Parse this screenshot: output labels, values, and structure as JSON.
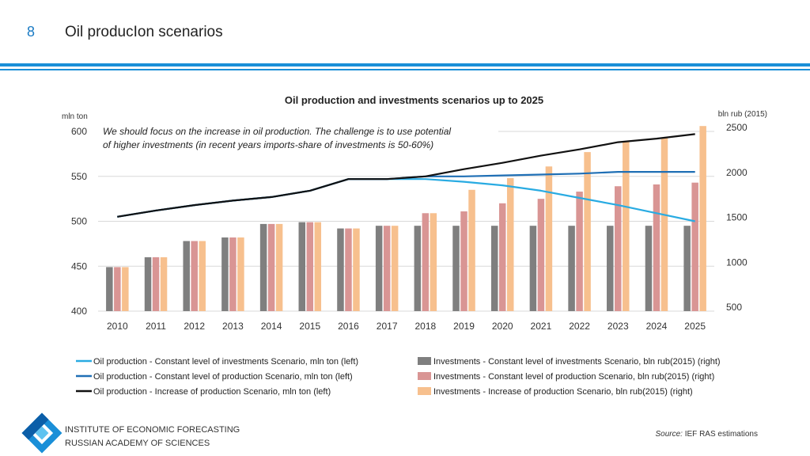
{
  "slide": {
    "number": "8",
    "title": "Oil producIon scenarios"
  },
  "footer": {
    "institute_line1": "INSTITUTE OF ECONOMIC FORECASTING",
    "institute_line2": "RUSSIAN ACADEMY OF SCIENCES",
    "source_label": "Source:",
    "source_text": "IEF RAS estimations"
  },
  "colors": {
    "accent": "#1a8fd8",
    "line_constant_investments": "#29abe2",
    "line_constant_production": "#1f6fb5",
    "line_increase": "#111111",
    "bar_constant_investments": "#7f7f7f",
    "bar_constant_production": "#d99594",
    "bar_increase": "#f7c08e"
  },
  "chart_data": {
    "type": "bar+line",
    "title": "Oil production and investments scenarios up to 2025",
    "annotation": [
      "We should focus on the increase in oil production. The challenge is to use potential",
      "of higher investments (in recent years imports-share of investments is 50-60%)"
    ],
    "ylabel_left": "mln ton",
    "ylabel_right": "bln rub (2015)",
    "ylim_left": [
      400,
      600
    ],
    "ylim_right": [
      500,
      2500
    ],
    "yticks_left": [
      400,
      450,
      500,
      550,
      600
    ],
    "yticks_right": [
      500,
      1000,
      1500,
      2000,
      2500
    ],
    "categories": [
      "2010",
      "2011",
      "2012",
      "2013",
      "2014",
      "2015",
      "2016",
      "2017",
      "2018",
      "2019",
      "2020",
      "2021",
      "2022",
      "2023",
      "2024",
      "2025"
    ],
    "bar_series": [
      {
        "name": "Investments - Constant level of investments Scenario, bln rub(2015) (right)",
        "color_key": "bar_constant_investments",
        "values": [
          990,
          1100,
          1280,
          1320,
          1470,
          1490,
          1420,
          1450,
          1450,
          1450,
          1450,
          1450,
          1450,
          1450,
          1450,
          1450
        ]
      },
      {
        "name": "Investments - Constant level of production Scenario, bln rub(2015) (right)",
        "color_key": "bar_constant_production",
        "values": [
          990,
          1100,
          1280,
          1320,
          1470,
          1490,
          1420,
          1450,
          1590,
          1610,
          1700,
          1750,
          1830,
          1890,
          1910,
          1930
        ]
      },
      {
        "name": "Investments - Increase of production Scenario, bln rub(2015) (right)",
        "color_key": "bar_increase",
        "values": [
          990,
          1100,
          1280,
          1320,
          1470,
          1490,
          1420,
          1450,
          1590,
          1850,
          1980,
          2110,
          2270,
          2390,
          2430,
          2560
        ]
      }
    ],
    "line_series": [
      {
        "name": "Oil production - Constant level of investments Scenario, mln ton (left)",
        "color_key": "line_constant_investments",
        "values": [
          505,
          512,
          518,
          523,
          527,
          534,
          547,
          547,
          547,
          544,
          540,
          534,
          526,
          518,
          509,
          500
        ]
      },
      {
        "name": "Oil production - Constant level of production Scenario, mln ton (left)",
        "color_key": "line_constant_production",
        "values": [
          505,
          512,
          518,
          523,
          527,
          534,
          547,
          547,
          550,
          550,
          551,
          552,
          553,
          555,
          555,
          555
        ]
      },
      {
        "name": "Oil production - Increase of production Scenario, mln ton (left)",
        "color_key": "line_increase",
        "values": [
          505,
          512,
          518,
          523,
          527,
          534,
          547,
          547,
          550,
          558,
          565,
          573,
          580,
          588,
          592,
          597
        ]
      }
    ],
    "legend": {
      "placement": "bottom",
      "lines": [
        "Oil production - Constant level of investments Scenario, mln ton (left)",
        "Oil production - Constant level of production Scenario, mln ton (left)",
        "Oil production - Increase of production Scenario, mln ton (left)"
      ],
      "bars": [
        "Investments - Constant level of investments Scenario, bln rub(2015) (right)",
        "Investments - Constant level of production Scenario, bln rub(2015) (right)",
        "Investments - Increase of production Scenario, bln rub(2015) (right)"
      ]
    },
    "grid": true
  }
}
